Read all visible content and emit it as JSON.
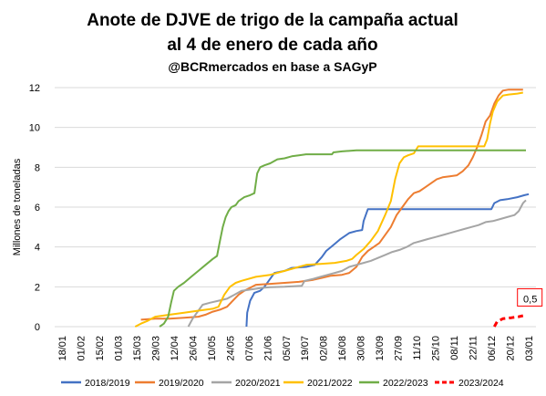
{
  "chart_data": {
    "type": "line",
    "title": "Anote de DJVE de trigo de la campaña actual",
    "title2": "al 4 de enero de cada año",
    "subtitle": "@BCRmercados en base a SAGyP",
    "xlabel": "",
    "ylabel": "Millones de toneladas",
    "ylim": [
      0,
      12
    ],
    "yticks": [
      0,
      2,
      4,
      6,
      8,
      10,
      12
    ],
    "grid": true,
    "legend_position": "bottom",
    "x_tick_labels": [
      "18/01",
      "01/02",
      "15/02",
      "01/03",
      "15/03",
      "29/03",
      "12/04",
      "26/04",
      "10/05",
      "24/05",
      "07/06",
      "21/06",
      "05/07",
      "19/07",
      "02/08",
      "16/08",
      "30/08",
      "13/09",
      "27/09",
      "11/10",
      "25/10",
      "08/11",
      "22/11",
      "06/12",
      "20/12",
      "03/01"
    ],
    "annotation": {
      "text": "0,5",
      "x": "03/01",
      "y": 0.55,
      "color": "#ff0000"
    },
    "series": [
      {
        "name": "2018/2019",
        "color": "#4472c4",
        "dash": false,
        "points": [
          [
            13.35,
            0
          ],
          [
            13.4,
            0.7
          ],
          [
            13.6,
            1.3
          ],
          [
            13.9,
            1.7
          ],
          [
            14.3,
            1.8
          ],
          [
            14.6,
            2.0
          ],
          [
            15.0,
            2.4
          ],
          [
            15.3,
            2.7
          ],
          [
            16.0,
            2.8
          ],
          [
            16.5,
            2.95
          ],
          [
            17.5,
            3.0
          ],
          [
            18.1,
            3.1
          ],
          [
            18.6,
            3.5
          ],
          [
            18.9,
            3.8
          ],
          [
            19.4,
            4.1
          ],
          [
            19.9,
            4.4
          ],
          [
            20.5,
            4.7
          ],
          [
            21.0,
            4.8
          ],
          [
            21.4,
            4.85
          ],
          [
            21.5,
            5.3
          ],
          [
            21.8,
            5.9
          ],
          [
            22.5,
            5.9
          ],
          [
            23.5,
            5.9
          ],
          [
            24.5,
            5.9
          ],
          [
            25.5,
            5.9
          ],
          [
            26.5,
            5.9
          ],
          [
            27.5,
            5.9
          ],
          [
            28.5,
            5.9
          ],
          [
            29.5,
            5.9
          ],
          [
            30.4,
            5.9
          ],
          [
            30.6,
            6.2
          ],
          [
            31.0,
            6.35
          ],
          [
            31.5,
            6.4
          ],
          [
            32.2,
            6.5
          ],
          [
            32.7,
            6.6
          ],
          [
            33.0,
            6.65
          ]
        ]
      },
      {
        "name": "2019/2020",
        "color": "#ed7d31",
        "dash": false,
        "points": [
          [
            6.0,
            0.35
          ],
          [
            7.0,
            0.4
          ],
          [
            8.0,
            0.4
          ],
          [
            9.0,
            0.45
          ],
          [
            10.0,
            0.5
          ],
          [
            10.5,
            0.6
          ],
          [
            11.0,
            0.75
          ],
          [
            11.5,
            0.85
          ],
          [
            12.0,
            1.0
          ],
          [
            12.4,
            1.3
          ],
          [
            12.8,
            1.6
          ],
          [
            13.2,
            1.8
          ],
          [
            13.6,
            1.95
          ],
          [
            14.0,
            2.1
          ],
          [
            15.0,
            2.15
          ],
          [
            16.0,
            2.2
          ],
          [
            17.0,
            2.25
          ],
          [
            18.0,
            2.35
          ],
          [
            18.6,
            2.45
          ],
          [
            19.2,
            2.55
          ],
          [
            20.0,
            2.6
          ],
          [
            20.5,
            2.7
          ],
          [
            21.0,
            3.0
          ],
          [
            21.4,
            3.5
          ],
          [
            21.8,
            3.8
          ],
          [
            22.2,
            4.0
          ],
          [
            22.6,
            4.2
          ],
          [
            23.0,
            4.6
          ],
          [
            23.4,
            5.0
          ],
          [
            23.8,
            5.6
          ],
          [
            24.2,
            6.0
          ],
          [
            24.6,
            6.4
          ],
          [
            25.0,
            6.7
          ],
          [
            25.4,
            6.8
          ],
          [
            25.8,
            7.0
          ],
          [
            26.2,
            7.2
          ],
          [
            26.6,
            7.4
          ],
          [
            27.0,
            7.5
          ],
          [
            27.5,
            7.55
          ],
          [
            28.0,
            7.6
          ],
          [
            28.4,
            7.8
          ],
          [
            28.8,
            8.1
          ],
          [
            29.1,
            8.5
          ],
          [
            29.4,
            9.0
          ],
          [
            29.7,
            9.6
          ],
          [
            30.0,
            10.3
          ],
          [
            30.3,
            10.6
          ],
          [
            30.6,
            11.2
          ],
          [
            30.9,
            11.6
          ],
          [
            31.2,
            11.85
          ],
          [
            31.6,
            11.9
          ],
          [
            32.2,
            11.9
          ],
          [
            32.6,
            11.9
          ]
        ]
      },
      {
        "name": "2020/2021",
        "color": "#a5a5a5",
        "dash": false,
        "points": [
          [
            9.3,
            0
          ],
          [
            9.6,
            0.4
          ],
          [
            10.0,
            0.8
          ],
          [
            10.3,
            1.1
          ],
          [
            10.8,
            1.2
          ],
          [
            11.4,
            1.3
          ],
          [
            12.0,
            1.4
          ],
          [
            12.5,
            1.6
          ],
          [
            13.0,
            1.8
          ],
          [
            13.5,
            1.85
          ],
          [
            14.0,
            1.9
          ],
          [
            14.5,
            1.95
          ],
          [
            15.0,
            1.98
          ],
          [
            16.0,
            2.0
          ],
          [
            17.2,
            2.05
          ],
          [
            17.4,
            2.3
          ],
          [
            18.0,
            2.4
          ],
          [
            18.5,
            2.5
          ],
          [
            19.0,
            2.6
          ],
          [
            19.5,
            2.7
          ],
          [
            20.0,
            2.8
          ],
          [
            20.5,
            3.0
          ],
          [
            21.0,
            3.1
          ],
          [
            21.5,
            3.2
          ],
          [
            22.0,
            3.3
          ],
          [
            22.5,
            3.45
          ],
          [
            23.0,
            3.6
          ],
          [
            23.5,
            3.75
          ],
          [
            24.0,
            3.85
          ],
          [
            24.5,
            4.0
          ],
          [
            25.0,
            4.2
          ],
          [
            25.5,
            4.3
          ],
          [
            26.0,
            4.4
          ],
          [
            26.5,
            4.5
          ],
          [
            27.0,
            4.6
          ],
          [
            27.5,
            4.7
          ],
          [
            28.0,
            4.8
          ],
          [
            28.5,
            4.9
          ],
          [
            29.0,
            5.0
          ],
          [
            29.5,
            5.1
          ],
          [
            30.0,
            5.25
          ],
          [
            30.5,
            5.3
          ],
          [
            31.0,
            5.4
          ],
          [
            31.5,
            5.5
          ],
          [
            32.0,
            5.6
          ],
          [
            32.3,
            5.8
          ],
          [
            32.6,
            6.2
          ],
          [
            32.8,
            6.35
          ]
        ]
      },
      {
        "name": "2021/2022",
        "color": "#ffc000",
        "dash": false,
        "points": [
          [
            5.6,
            0
          ],
          [
            6.0,
            0.15
          ],
          [
            6.5,
            0.3
          ],
          [
            7.0,
            0.5
          ],
          [
            8.0,
            0.6
          ],
          [
            9.0,
            0.7
          ],
          [
            10.0,
            0.8
          ],
          [
            11.0,
            0.9
          ],
          [
            11.4,
            1.0
          ],
          [
            11.8,
            1.6
          ],
          [
            12.2,
            2.0
          ],
          [
            12.6,
            2.2
          ],
          [
            13.0,
            2.3
          ],
          [
            14.0,
            2.5
          ],
          [
            15.0,
            2.6
          ],
          [
            16.0,
            2.8
          ],
          [
            17.0,
            3.0
          ],
          [
            17.5,
            3.1
          ],
          [
            18.5,
            3.15
          ],
          [
            19.5,
            3.2
          ],
          [
            20.3,
            3.3
          ],
          [
            20.7,
            3.4
          ],
          [
            21.0,
            3.6
          ],
          [
            21.5,
            3.9
          ],
          [
            22.0,
            4.3
          ],
          [
            22.5,
            4.8
          ],
          [
            23.0,
            5.6
          ],
          [
            23.4,
            6.3
          ],
          [
            23.7,
            7.4
          ],
          [
            24.0,
            8.2
          ],
          [
            24.3,
            8.5
          ],
          [
            24.6,
            8.6
          ],
          [
            25.0,
            8.7
          ],
          [
            25.3,
            9.05
          ],
          [
            26.0,
            9.05
          ],
          [
            27.0,
            9.05
          ],
          [
            28.0,
            9.05
          ],
          [
            29.0,
            9.05
          ],
          [
            29.9,
            9.05
          ],
          [
            30.1,
            9.4
          ],
          [
            30.3,
            10.2
          ],
          [
            30.5,
            10.8
          ],
          [
            30.8,
            11.3
          ],
          [
            31.2,
            11.6
          ],
          [
            31.6,
            11.65
          ],
          [
            32.2,
            11.7
          ],
          [
            32.6,
            11.75
          ]
        ]
      },
      {
        "name": "2022/2023",
        "color": "#70ad47",
        "dash": false,
        "points": [
          [
            7.3,
            0
          ],
          [
            7.6,
            0.15
          ],
          [
            7.9,
            0.5
          ],
          [
            8.1,
            1.2
          ],
          [
            8.3,
            1.8
          ],
          [
            8.6,
            2.0
          ],
          [
            9.0,
            2.2
          ],
          [
            9.5,
            2.5
          ],
          [
            10.0,
            2.8
          ],
          [
            10.5,
            3.1
          ],
          [
            11.0,
            3.4
          ],
          [
            11.3,
            3.55
          ],
          [
            11.5,
            4.3
          ],
          [
            11.7,
            5.0
          ],
          [
            11.9,
            5.5
          ],
          [
            12.1,
            5.8
          ],
          [
            12.3,
            6.0
          ],
          [
            12.6,
            6.1
          ],
          [
            12.8,
            6.3
          ],
          [
            13.2,
            6.5
          ],
          [
            13.6,
            6.6
          ],
          [
            13.9,
            6.7
          ],
          [
            14.1,
            7.7
          ],
          [
            14.3,
            8.0
          ],
          [
            14.6,
            8.1
          ],
          [
            15.0,
            8.2
          ],
          [
            15.5,
            8.4
          ],
          [
            16.0,
            8.45
          ],
          [
            16.5,
            8.55
          ],
          [
            17.0,
            8.6
          ],
          [
            17.5,
            8.65
          ],
          [
            18.5,
            8.65
          ],
          [
            19.3,
            8.65
          ],
          [
            19.4,
            8.75
          ],
          [
            20.0,
            8.8
          ],
          [
            21.0,
            8.85
          ],
          [
            22.0,
            8.85
          ],
          [
            23.0,
            8.85
          ],
          [
            24.0,
            8.85
          ],
          [
            25.0,
            8.85
          ],
          [
            26.0,
            8.85
          ],
          [
            27.0,
            8.85
          ],
          [
            28.0,
            8.85
          ],
          [
            29.0,
            8.85
          ],
          [
            30.0,
            8.85
          ],
          [
            31.0,
            8.85
          ],
          [
            32.0,
            8.85
          ],
          [
            32.8,
            8.85
          ]
        ]
      },
      {
        "name": "2023/2024",
        "color": "#ff0000",
        "dash": true,
        "points": [
          [
            30.6,
            0
          ],
          [
            30.8,
            0.25
          ],
          [
            31.2,
            0.4
          ],
          [
            31.8,
            0.45
          ],
          [
            32.3,
            0.5
          ],
          [
            32.6,
            0.55
          ]
        ]
      }
    ]
  }
}
